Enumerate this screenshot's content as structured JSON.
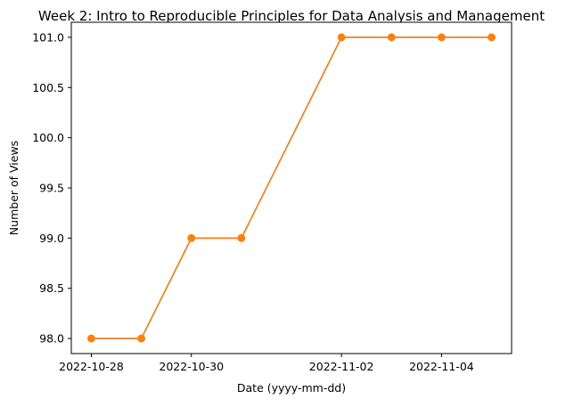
{
  "chart_data": {
    "type": "line",
    "title": "Week 2: Intro to Reproducible Principles for Data Analysis and Management",
    "xlabel": "Date (yyyy-mm-dd)",
    "ylabel": "Number of Views",
    "x": [
      "2022-10-28",
      "2022-10-29",
      "2022-10-30",
      "2022-10-31",
      "2022-11-02",
      "2022-11-03",
      "2022-11-04",
      "2022-11-05"
    ],
    "xticks": [
      "2022-10-28",
      "2022-10-30",
      "2022-11-02",
      "2022-11-04"
    ],
    "yticks": [
      98.0,
      98.5,
      99.0,
      99.5,
      100.0,
      100.5,
      101.0
    ],
    "ytick_labels": [
      "98.0",
      "98.5",
      "99.0",
      "99.5",
      "100.0",
      "100.5",
      "101.0"
    ],
    "ylim": [
      97.85,
      101.15
    ],
    "xlim": [
      "2022-10-27.6",
      "2022-11-05.4"
    ],
    "grid": false,
    "series": [
      {
        "name": "views",
        "color": "#ff7f0e",
        "underlay_color": "#1f77b4",
        "values": [
          98,
          98,
          99,
          99,
          101,
          101,
          101,
          101
        ]
      }
    ]
  }
}
